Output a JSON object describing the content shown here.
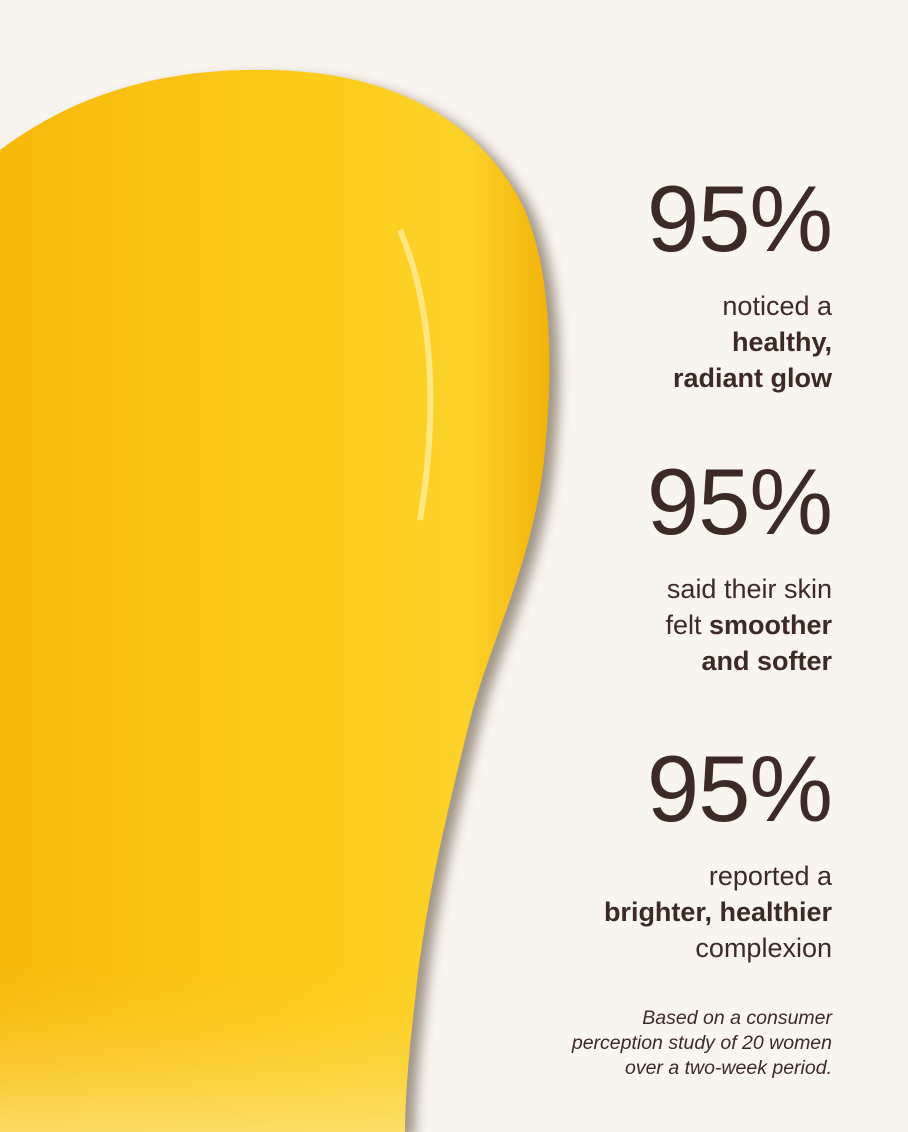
{
  "colors": {
    "background": "#f8f4ee",
    "text": "#3d2a24",
    "swatch": "#fbc913"
  },
  "stats": [
    {
      "value": "95%",
      "lines": [
        {
          "pre": "noticed a",
          "bold": ""
        },
        {
          "pre": "",
          "bold": "healthy,"
        },
        {
          "pre": "",
          "bold": "radiant glow"
        }
      ]
    },
    {
      "value": "95%",
      "lines": [
        {
          "pre": "said their skin",
          "bold": ""
        },
        {
          "pre": "felt ",
          "bold": "smoother"
        },
        {
          "pre": "",
          "bold": "and softer"
        }
      ]
    },
    {
      "value": "95%",
      "lines": [
        {
          "pre": "reported a",
          "bold": ""
        },
        {
          "pre": "",
          "bold": "brighter, healthier"
        },
        {
          "pre": "complexion",
          "bold": ""
        }
      ]
    }
  ],
  "footnote": [
    "Based on a consumer",
    "perception study of 20 women",
    "over a two-week period."
  ]
}
